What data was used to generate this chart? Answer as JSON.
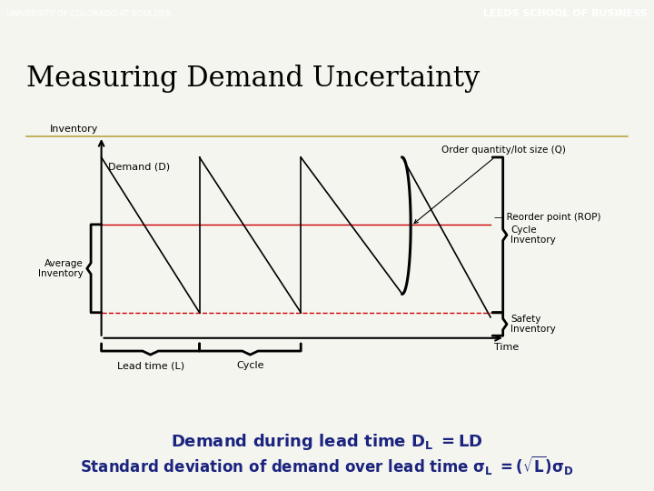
{
  "header_bg": "#b5a642",
  "header_text_left": "UNIVERSITY OF COLORADO AT BOULDER",
  "header_text_right": "LEEDS SCHOOL OF BUSINESS",
  "header_text_color": "#ffffff",
  "bg_color": "#f5f5f0",
  "title": "Measuring Demand Uncertainty",
  "title_color": "#000000",
  "divider_color": "#b5a642",
  "body_bg": "#ffffff",
  "rop_color": "#cc0000",
  "safety_color": "#cc0000",
  "diagram_line_color": "#000000",
  "bottom_text_color": "#1a237e"
}
